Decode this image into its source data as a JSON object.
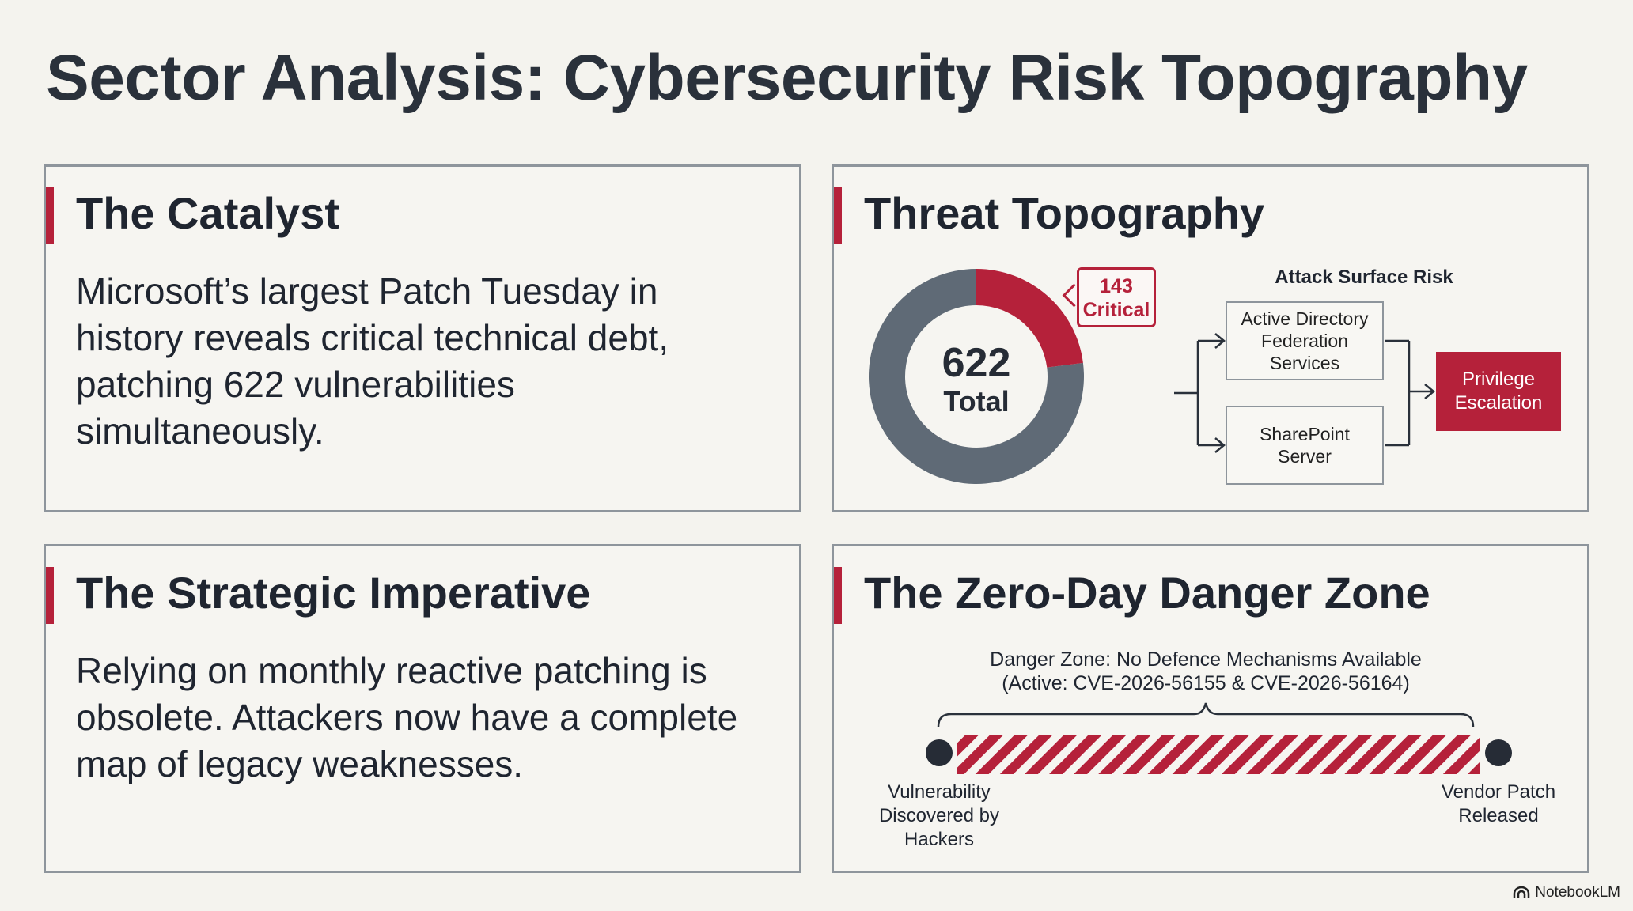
{
  "title": "Sector Analysis: Cybersecurity Risk Topography",
  "colors": {
    "accent": "#b5213a",
    "slate": "#5f6a76",
    "border": "#8e959c",
    "background": "#f4f3ee"
  },
  "catalyst": {
    "heading": "The Catalyst",
    "body": "Microsoft’s largest Patch Tuesday in history reveals critical technical debt, patching 622 vulnerabilities simultaneously."
  },
  "threat": {
    "heading": "Threat Topography",
    "donut": {
      "total": 622,
      "total_text": "622",
      "total_label": "Total",
      "critical": 143,
      "critical_text": "143",
      "critical_label": "Critical"
    },
    "surface": {
      "title": "Attack Surface Risk",
      "nodes": [
        "Active Directory Federation Services",
        "SharePoint Server"
      ],
      "target": "Privilege Escalation"
    }
  },
  "strategic": {
    "heading": "The Strategic Imperative",
    "body": "Relying on monthly reactive patching is obsolete. Attackers now have a complete map of legacy weaknesses."
  },
  "zero_day": {
    "heading": "The Zero-Day Danger Zone",
    "caption_line1": "Danger Zone: No Defence Mechanisms Available",
    "caption_line2": "(Active: CVE-2026-56155 & CVE-2026-56164)",
    "start_label": "Vulnerability Discovered by Hackers",
    "end_label": "Vendor Patch Released"
  },
  "brand": "NotebookLM"
}
